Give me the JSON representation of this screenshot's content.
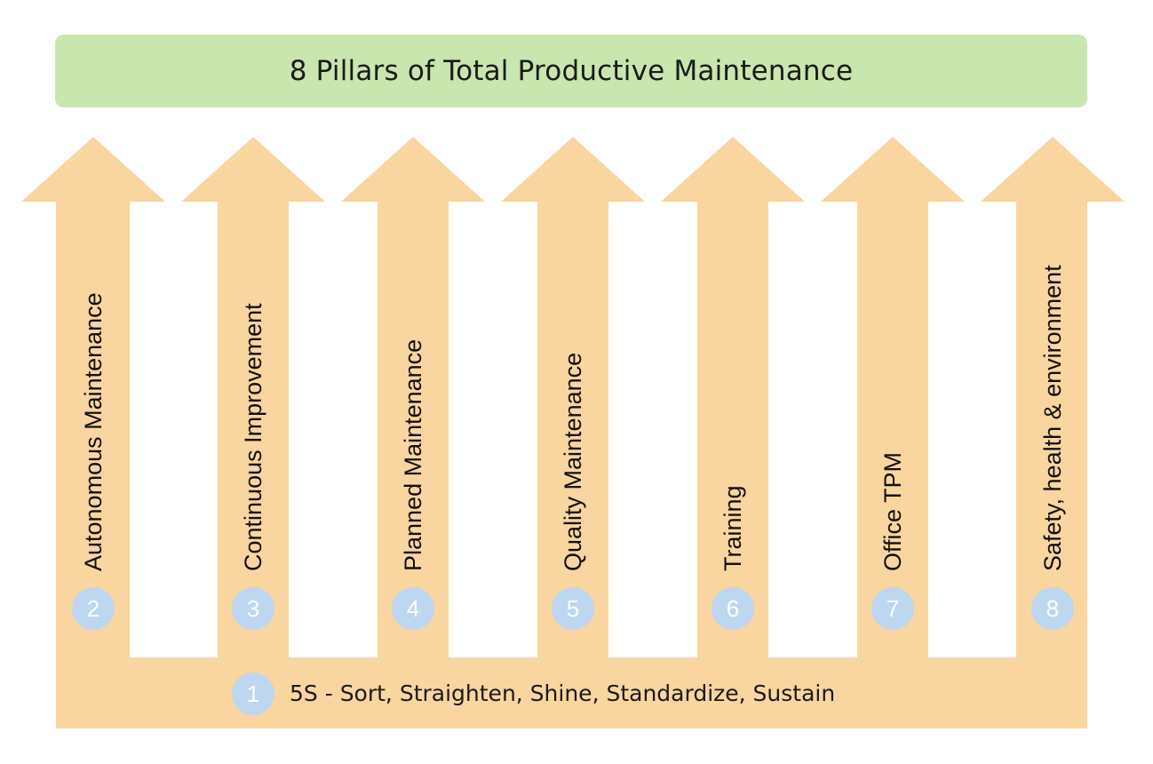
{
  "title": "8 Pillars of Total Productive Maintenance",
  "colors": {
    "banner": "#c8e6ae",
    "pillar": "#f9d5a0",
    "badge": "#bcd7ef",
    "text": "#111111"
  },
  "base": {
    "number": "1",
    "label": "5S - Sort, Straighten, Shine, Standardize, Sustain"
  },
  "pillars": [
    {
      "number": "2",
      "label": "Autonomous Maintenance"
    },
    {
      "number": "3",
      "label": "Continuous Improvement"
    },
    {
      "number": "4",
      "label": "Planned Maintenance"
    },
    {
      "number": "5",
      "label": "Quality Maintenance"
    },
    {
      "number": "6",
      "label": "Training"
    },
    {
      "number": "7",
      "label": "Office TPM"
    },
    {
      "number": "8",
      "label": "Safety, health & environment"
    }
  ]
}
